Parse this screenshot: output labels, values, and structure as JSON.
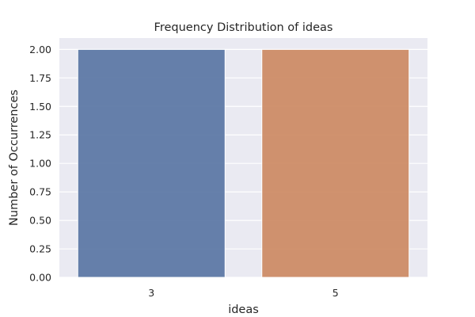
{
  "chart_data": {
    "type": "bar",
    "title": "Frequency Distribution of ideas",
    "xlabel": "ideas",
    "ylabel": "Number of Occurrences",
    "categories": [
      "3",
      "5"
    ],
    "values": [
      2,
      2
    ],
    "ylim": [
      0,
      2.1
    ],
    "yticks": [
      "0.00",
      "0.25",
      "0.50",
      "0.75",
      "1.00",
      "1.25",
      "1.50",
      "1.75",
      "2.00"
    ],
    "grid": true,
    "legend": "none",
    "colors": [
      "#5975a4",
      "#cc8963"
    ],
    "background": "#eaeaf2",
    "gridline_color": "#ffffff"
  }
}
